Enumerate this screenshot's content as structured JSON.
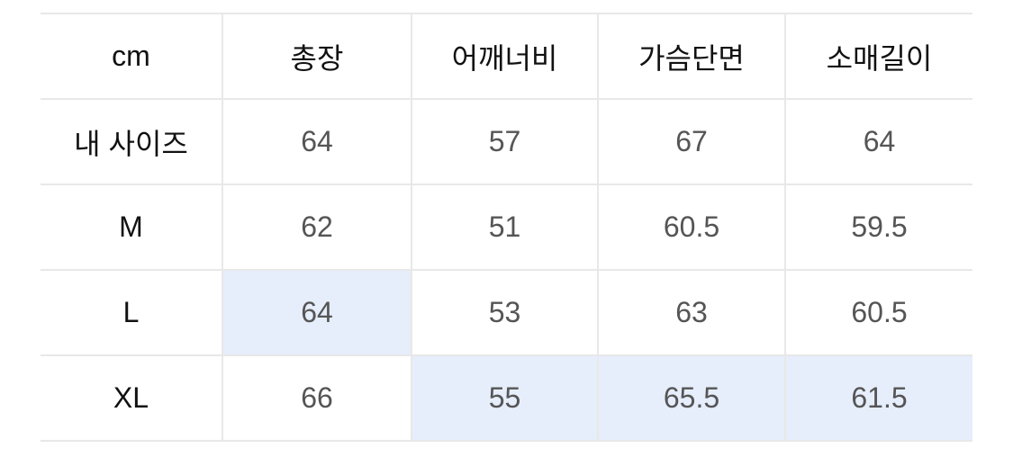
{
  "table": {
    "headers": [
      "cm",
      "총장",
      "어깨너비",
      "가슴단면",
      "소매길이"
    ],
    "rows": [
      {
        "label": "내 사이즈",
        "values": [
          "64",
          "57",
          "67",
          "64"
        ],
        "highlighted": [
          false,
          false,
          false,
          false
        ]
      },
      {
        "label": "M",
        "values": [
          "62",
          "51",
          "60.5",
          "59.5"
        ],
        "highlighted": [
          false,
          false,
          false,
          false
        ]
      },
      {
        "label": "L",
        "values": [
          "64",
          "53",
          "63",
          "60.5"
        ],
        "highlighted": [
          true,
          false,
          false,
          false
        ]
      },
      {
        "label": "XL",
        "values": [
          "66",
          "55",
          "65.5",
          "61.5"
        ],
        "highlighted": [
          false,
          true,
          true,
          true
        ]
      }
    ],
    "highlight_color": "#e6edfb"
  }
}
